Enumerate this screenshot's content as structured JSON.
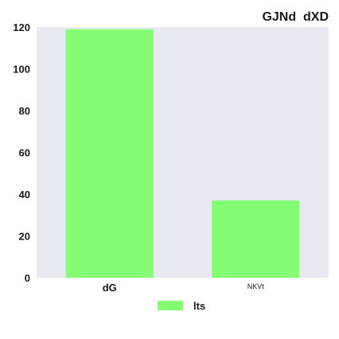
{
  "chart_data": {
    "type": "bar",
    "title": "GJNd  dXD",
    "xlabel": "",
    "ylabel": "",
    "categories": [
      "dG",
      "NKVt"
    ],
    "series": [
      {
        "name": "lts",
        "values": [
          119,
          37
        ]
      }
    ],
    "ylim": [
      0,
      120
    ],
    "yticks": [
      0,
      20,
      40,
      60,
      80,
      100,
      120
    ],
    "grid": false,
    "legend_position": "bottom-center",
    "colors": {
      "plot_background": "#e9e9f2",
      "bar": "#84fc74",
      "text": "#1a1a1a"
    }
  }
}
